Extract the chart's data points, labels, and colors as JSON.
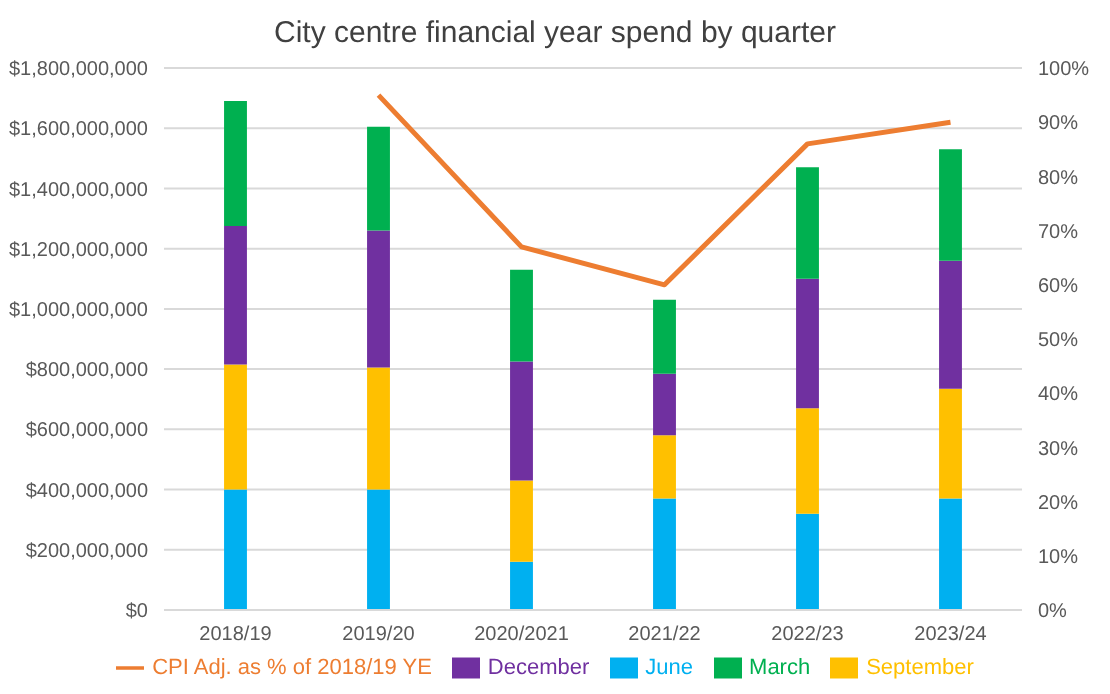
{
  "chart_data": {
    "type": "bar",
    "title": "City centre financial year spend by quarter",
    "categories": [
      "2018/19",
      "2019/20",
      "2020/2021",
      "2021/22",
      "2022/23",
      "2023/24"
    ],
    "stacked": true,
    "series": [
      {
        "name": "June",
        "color": "#00b0f0",
        "values": [
          400000000,
          400000000,
          160000000,
          370000000,
          320000000,
          370000000
        ]
      },
      {
        "name": "September",
        "color": "#ffc000",
        "values": [
          415000000,
          405000000,
          270000000,
          210000000,
          350000000,
          365000000
        ]
      },
      {
        "name": "December",
        "color": "#7030a0",
        "values": [
          460000000,
          455000000,
          395000000,
          205000000,
          430000000,
          425000000
        ]
      },
      {
        "name": "March",
        "color": "#00b050",
        "values": [
          415000000,
          345000000,
          305000000,
          245000000,
          370000000,
          370000000
        ]
      },
      {
        "name": "CPI Adj. as % of 2018/19 YE",
        "type": "line",
        "axis": "y2",
        "color": "#ed7d31",
        "values": [
          null,
          95,
          67,
          60,
          86,
          90
        ]
      }
    ],
    "ylim": [
      0,
      1800000000
    ],
    "yticks": [
      {
        "value": 0,
        "label": "$0"
      },
      {
        "value": 200000000,
        "label": "$200,000,000"
      },
      {
        "value": 400000000,
        "label": "$400,000,000"
      },
      {
        "value": 600000000,
        "label": "$600,000,000"
      },
      {
        "value": 800000000,
        "label": "$800,000,000"
      },
      {
        "value": 1000000000,
        "label": "$1,000,000,000"
      },
      {
        "value": 1200000000,
        "label": "$1,200,000,000"
      },
      {
        "value": 1400000000,
        "label": "$1,400,000,000"
      },
      {
        "value": 1600000000,
        "label": "$1,600,000,000"
      },
      {
        "value": 1800000000,
        "label": "$1,800,000,000"
      }
    ],
    "y2lim": [
      0,
      100
    ],
    "y2ticks": [
      {
        "value": 0,
        "label": "0%"
      },
      {
        "value": 10,
        "label": "10%"
      },
      {
        "value": 20,
        "label": "20%"
      },
      {
        "value": 30,
        "label": "30%"
      },
      {
        "value": 40,
        "label": "40%"
      },
      {
        "value": 50,
        "label": "50%"
      },
      {
        "value": 60,
        "label": "60%"
      },
      {
        "value": 70,
        "label": "70%"
      },
      {
        "value": 80,
        "label": "80%"
      },
      {
        "value": 90,
        "label": "90%"
      },
      {
        "value": 100,
        "label": "100%"
      }
    ],
    "grid": "y",
    "legend": "bottom",
    "marker": "none"
  }
}
